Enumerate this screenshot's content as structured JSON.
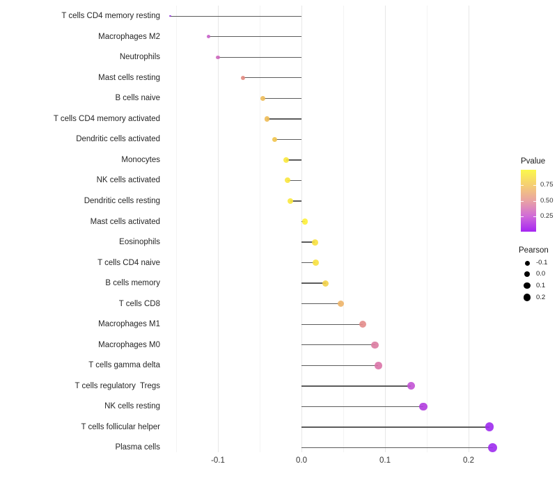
{
  "chart_data": {
    "type": "lollipop",
    "orientation": "horizontal",
    "title": "",
    "xlabel": "",
    "ylabel": "",
    "x_axis": {
      "ticks": [
        {
          "label": "-0.1",
          "value": -0.1
        },
        {
          "label": "0.0",
          "value": 0.0
        },
        {
          "label": "0.1",
          "value": 0.1
        },
        {
          "label": "0.2",
          "value": 0.2
        }
      ],
      "minor_ticks": [
        -0.15,
        -0.05,
        0.05,
        0.15
      ],
      "range": [
        -0.176,
        0.248
      ]
    },
    "value_name": "Pearson",
    "color_name": "Pvalue",
    "points": [
      {
        "name": "T cells CD4 memory resting",
        "pearson": -0.157,
        "color": "#8B2BD6"
      },
      {
        "name": "Macrophages M2",
        "pearson": -0.111,
        "color": "#C75FC9"
      },
      {
        "name": "Neutrophils",
        "pearson": -0.1,
        "color": "#CD67BD"
      },
      {
        "name": "Mast cells resting",
        "pearson": -0.07,
        "color": "#E2897F"
      },
      {
        "name": "B cells naive",
        "pearson": -0.046,
        "color": "#EDBB59"
      },
      {
        "name": "T cells CD4 memory activated",
        "pearson": -0.041,
        "color": "#EDBB55"
      },
      {
        "name": "Dendritic cells activated",
        "pearson": -0.032,
        "color": "#F1C44C"
      },
      {
        "name": "Monocytes",
        "pearson": -0.018,
        "color": "#FAE83D"
      },
      {
        "name": "NK cells activated",
        "pearson": -0.017,
        "color": "#F9E63E"
      },
      {
        "name": "Dendritic cells resting",
        "pearson": -0.013,
        "color": "#FAE83D"
      },
      {
        "name": "Mast cells activated",
        "pearson": 0.004,
        "color": "#FDEF3A"
      },
      {
        "name": "Eosinophils",
        "pearson": 0.016,
        "color": "#F8E140"
      },
      {
        "name": "T cells CD4 naive",
        "pearson": 0.017,
        "color": "#F8E140"
      },
      {
        "name": "B cells memory",
        "pearson": 0.029,
        "color": "#F3D34A"
      },
      {
        "name": "T cells CD8",
        "pearson": 0.047,
        "color": "#EDB468"
      },
      {
        "name": "Macrophages M1",
        "pearson": 0.073,
        "color": "#E38C8B"
      },
      {
        "name": "Macrophages M0",
        "pearson": 0.088,
        "color": "#DC7CA1"
      },
      {
        "name": "T cells gamma delta",
        "pearson": 0.092,
        "color": "#DA73A7"
      },
      {
        "name": "T cells regulatory  Tregs",
        "pearson": 0.131,
        "color": "#C253D5"
      },
      {
        "name": "NK cells resting",
        "pearson": 0.146,
        "color": "#B03CDE"
      },
      {
        "name": "T cells follicular helper",
        "pearson": 0.225,
        "color": "#9D2BEE"
      },
      {
        "name": "Plasma cells",
        "pearson": 0.229,
        "color": "#9D2BEE"
      }
    ]
  },
  "legend": {
    "pvalue": {
      "title": "Pvalue",
      "ticks": [
        {
          "label": "0.75",
          "value": 0.75
        },
        {
          "label": "0.50",
          "value": 0.5
        },
        {
          "label": "0.25",
          "value": 0.25
        }
      ],
      "bar_top_value": 0.99,
      "bar_bottom_value": 0.01,
      "gradient_bottom_to_top": [
        "#A525F2",
        "#D06BD8",
        "#E9A3A3",
        "#F5CE73",
        "#FBF84B"
      ]
    },
    "pearson": {
      "title": "Pearson",
      "items": [
        {
          "label": "-0.1",
          "value": -0.1
        },
        {
          "label": "0.0",
          "value": 0.0
        },
        {
          "label": "0.1",
          "value": 0.1
        },
        {
          "label": "0.2",
          "value": 0.2
        }
      ]
    }
  }
}
